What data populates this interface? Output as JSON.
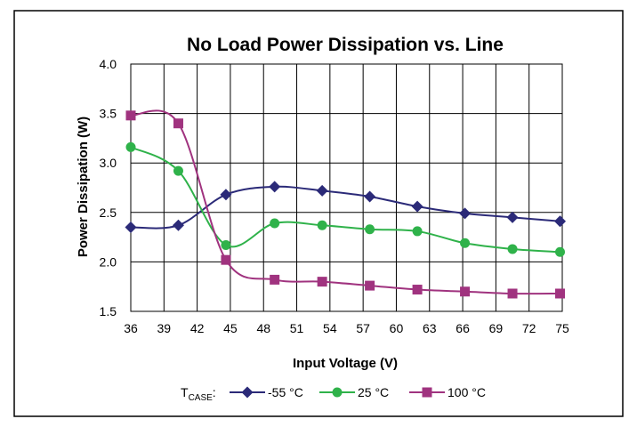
{
  "chart_data": {
    "type": "line",
    "title": "No Load Power Dissipation vs. Line",
    "xlabel": "Input Voltage (V)",
    "ylabel": "Power Dissipation (W)",
    "x_ticks": [
      "36",
      "39",
      "42",
      "45",
      "48",
      "51",
      "54",
      "57",
      "60",
      "63",
      "66",
      "69",
      "72",
      "75"
    ],
    "y_ticks": [
      "1.5",
      "2.0",
      "2.5",
      "3.0",
      "3.5",
      "4.0"
    ],
    "xlim": [
      36,
      75
    ],
    "ylim": [
      1.5,
      4.0
    ],
    "grid": true,
    "legend_position": "bottom",
    "legend_prefix": "T",
    "legend_prefix_sub": "CASE",
    "legend_prefix_suffix": ":",
    "series": [
      {
        "name": "-55 °C",
        "color": "#2b2a78",
        "marker": "diamond",
        "x": [
          36,
          40.3,
          44.6,
          49.0,
          53.3,
          57.6,
          61.9,
          66.2,
          70.5,
          74.8
        ],
        "y": [
          2.35,
          2.37,
          2.68,
          2.76,
          2.72,
          2.66,
          2.56,
          2.49,
          2.45,
          2.41
        ]
      },
      {
        "name": "25 °C",
        "color": "#2fb24a",
        "marker": "circle",
        "x": [
          36,
          40.3,
          44.6,
          49.0,
          53.3,
          57.6,
          61.9,
          66.2,
          70.5,
          74.8
        ],
        "y": [
          3.16,
          2.92,
          2.17,
          2.39,
          2.37,
          2.33,
          2.31,
          2.19,
          2.13,
          2.1
        ]
      },
      {
        "name": "100 °C",
        "color": "#a0337f",
        "marker": "square",
        "x": [
          36,
          40.3,
          44.6,
          49.0,
          53.3,
          57.6,
          61.9,
          66.2,
          70.5,
          74.8
        ],
        "y": [
          3.48,
          3.4,
          2.02,
          1.82,
          1.8,
          1.76,
          1.72,
          1.7,
          1.68,
          1.68
        ]
      }
    ]
  }
}
